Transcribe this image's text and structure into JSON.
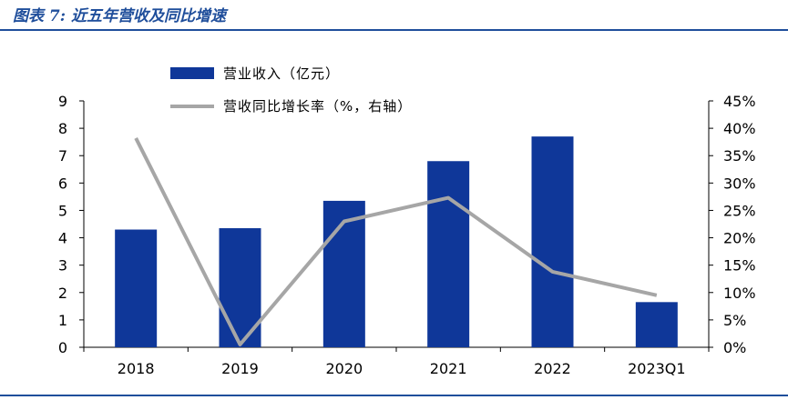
{
  "figure_title": "图表 7:  近五年营收及同比增速",
  "colors": {
    "bar": "#0f3799",
    "line": "#a6a6a6",
    "accent": "#1f4e9b"
  },
  "chart_data": {
    "type": "bar",
    "categories": [
      "2018",
      "2019",
      "2020",
      "2021",
      "2022",
      "2023Q1"
    ],
    "series": [
      {
        "name": "营业收入（亿元）",
        "type": "bar",
        "axis": "left",
        "values": [
          4.3,
          4.35,
          5.35,
          6.8,
          7.7,
          1.65
        ]
      },
      {
        "name": "营收同比增长率（%，右轴）",
        "type": "line",
        "axis": "right",
        "values": [
          38.2,
          0.5,
          23.0,
          27.3,
          13.8,
          9.5
        ]
      }
    ],
    "left_axis": {
      "min": 0,
      "max": 9,
      "ticks": [
        "0",
        "1",
        "2",
        "3",
        "4",
        "5",
        "6",
        "7",
        "8",
        "9"
      ]
    },
    "right_axis": {
      "min": 0,
      "max": 45,
      "ticks": [
        "0%",
        "5%",
        "10%",
        "15%",
        "20%",
        "25%",
        "30%",
        "35%",
        "40%",
        "45%"
      ]
    },
    "legend_position": "top-left",
    "grid": false
  }
}
